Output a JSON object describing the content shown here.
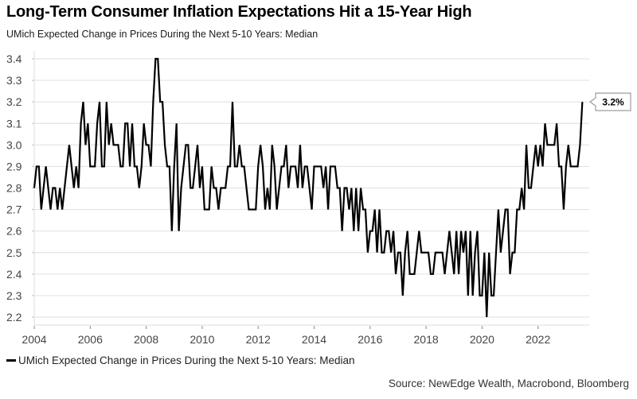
{
  "chart_data": {
    "type": "line",
    "title": "Long-Term Consumer Inflation Expectations Hit a 15-Year High",
    "subtitle": "UMich Expected Change in Prices During the Next 5-10 Years: Median",
    "xlabel": "",
    "ylabel": "",
    "frequency": "monthly",
    "x_start": "2004-01",
    "xlim": [
      2004.0,
      2023.83
    ],
    "ylim": [
      2.15,
      3.45
    ],
    "x_ticks": [
      "2004",
      "2006",
      "2008",
      "2010",
      "2012",
      "2014",
      "2016",
      "2018",
      "2020",
      "2022"
    ],
    "y_ticks": [
      "2.2",
      "2.3",
      "2.4",
      "2.5",
      "2.6",
      "2.7",
      "2.8",
      "2.9",
      "3.0",
      "3.1",
      "3.2",
      "3.3",
      "3.4"
    ],
    "grid": true,
    "legend_position": "bottom-left",
    "series": [
      {
        "name": "UMich Expected Change in Prices During the Next 5-10 Years: Median",
        "color": "#000000",
        "values": [
          2.8,
          2.9,
          2.9,
          2.7,
          2.8,
          2.9,
          2.8,
          2.7,
          2.8,
          2.8,
          2.7,
          2.8,
          2.7,
          2.8,
          2.9,
          3.0,
          2.9,
          2.8,
          2.9,
          2.8,
          3.1,
          3.2,
          3.0,
          3.1,
          2.9,
          2.9,
          2.9,
          3.1,
          3.2,
          2.9,
          2.9,
          3.2,
          3.0,
          3.1,
          3.0,
          3.0,
          3.0,
          2.9,
          2.9,
          3.1,
          3.1,
          2.9,
          3.1,
          2.9,
          2.9,
          2.8,
          2.9,
          3.1,
          3.0,
          3.0,
          2.9,
          3.2,
          3.4,
          3.4,
          3.2,
          3.2,
          3.0,
          2.9,
          2.9,
          2.6,
          2.9,
          3.1,
          2.6,
          2.8,
          2.9,
          3.0,
          3.0,
          2.8,
          2.8,
          2.9,
          3.0,
          2.8,
          2.9,
          2.7,
          2.7,
          2.7,
          2.9,
          2.8,
          2.8,
          2.7,
          2.8,
          2.8,
          2.8,
          2.9,
          2.9,
          3.2,
          2.9,
          2.9,
          3.0,
          2.9,
          2.9,
          2.8,
          2.7,
          2.7,
          2.7,
          2.7,
          2.9,
          3.0,
          2.9,
          2.7,
          2.8,
          2.7,
          3.0,
          2.9,
          2.7,
          2.8,
          2.9,
          2.9,
          3.0,
          2.8,
          2.9,
          2.9,
          2.9,
          2.8,
          3.0,
          2.8,
          2.9,
          2.9,
          2.8,
          2.7,
          2.9,
          2.9,
          2.9,
          2.9,
          2.8,
          2.9,
          2.7,
          2.9,
          2.9,
          2.9,
          2.8,
          2.8,
          2.6,
          2.8,
          2.8,
          2.7,
          2.8,
          2.6,
          2.8,
          2.6,
          2.8,
          2.7,
          2.7,
          2.5,
          2.6,
          2.6,
          2.7,
          2.5,
          2.7,
          2.5,
          2.5,
          2.6,
          2.6,
          2.5,
          2.6,
          2.4,
          2.5,
          2.5,
          2.3,
          2.5,
          2.6,
          2.4,
          2.4,
          2.4,
          2.5,
          2.6,
          2.5,
          2.5,
          2.5,
          2.5,
          2.4,
          2.4,
          2.5,
          2.5,
          2.5,
          2.5,
          2.4,
          2.5,
          2.6,
          2.5,
          2.4,
          2.6,
          2.4,
          2.6,
          2.5,
          2.6,
          2.3,
          2.6,
          2.3,
          2.5,
          2.6,
          2.3,
          2.3,
          2.5,
          2.2,
          2.5,
          2.3,
          2.3,
          2.5,
          2.7,
          2.5,
          2.6,
          2.7,
          2.7,
          2.4,
          2.5,
          2.5,
          2.7,
          2.7,
          2.8,
          2.7,
          3.0,
          2.8,
          2.8,
          2.9,
          3.0,
          2.9,
          3.0,
          2.9,
          3.1,
          3.0,
          3.0,
          3.0,
          3.0,
          3.1,
          2.9,
          2.9,
          2.7,
          2.9,
          3.0,
          2.9,
          2.9,
          2.9,
          2.9,
          3.0,
          3.2
        ]
      }
    ],
    "annotations": [
      {
        "type": "last-value-callout",
        "text": "3.2%",
        "value": 3.2
      }
    ]
  },
  "legend": {
    "label": "UMich Expected Change in Prices During the Next 5-10 Years: Median"
  },
  "source": "Source: NewEdge Wealth, Macrobond, Bloomberg"
}
